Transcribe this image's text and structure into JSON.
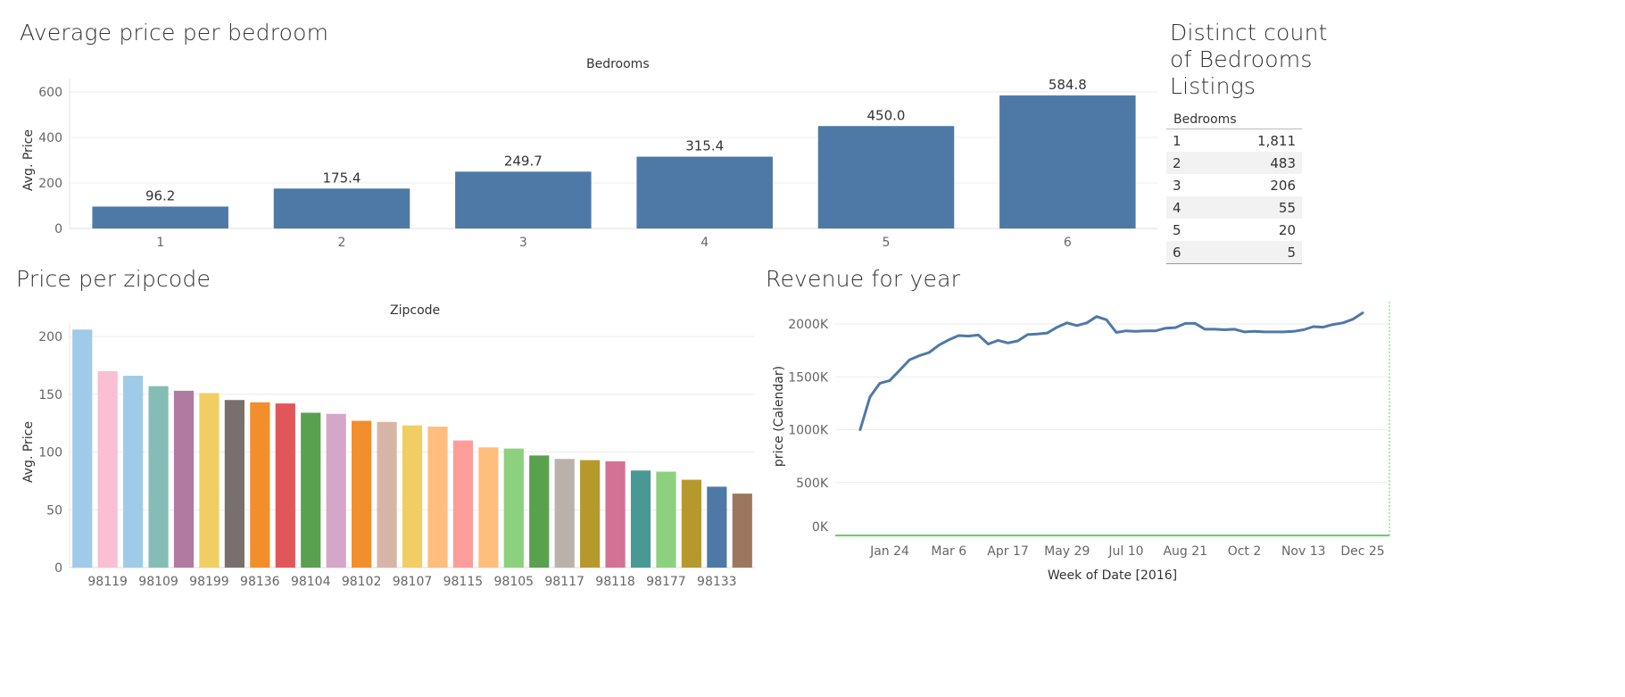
{
  "bedroom_panel": {
    "title": "Average price per bedroom"
  },
  "zip_panel": {
    "title": "Price per zipcode"
  },
  "revenue_panel": {
    "title": "Revenue for year"
  },
  "count_panel": {
    "title_lines": [
      "Distinct count",
      "of Bedrooms",
      "Listings"
    ],
    "column_header": "Bedrooms",
    "rows": [
      {
        "bedrooms": "1",
        "count": "1,811"
      },
      {
        "bedrooms": "2",
        "count": "483"
      },
      {
        "bedrooms": "3",
        "count": "206"
      },
      {
        "bedrooms": "4",
        "count": "55"
      },
      {
        "bedrooms": "5",
        "count": "20"
      },
      {
        "bedrooms": "6",
        "count": "5"
      }
    ]
  },
  "chart_data": [
    {
      "type": "bar",
      "title": "Average price per bedroom",
      "column_header": "Bedrooms",
      "ylabel": "Avg. Price",
      "ylim": [
        0,
        600
      ],
      "yticks": [
        0,
        200,
        400,
        600
      ],
      "categories": [
        "1",
        "2",
        "3",
        "4",
        "5",
        "6"
      ],
      "values": [
        96.2,
        175.4,
        249.7,
        315.4,
        450.0,
        584.8
      ],
      "value_labels": [
        "96.2",
        "175.4",
        "249.7",
        "315.4",
        "450.0",
        "584.8"
      ],
      "color": "#4e79a7",
      "grid": true
    },
    {
      "type": "bar",
      "title": "Price per zipcode",
      "column_header": "Zipcode",
      "ylabel": "Avg. Price",
      "ylim": [
        0,
        200
      ],
      "yticks": [
        0,
        50,
        100,
        150,
        200
      ],
      "categories": [
        "",
        "98119",
        "",
        "98109",
        "",
        "98199",
        "",
        "98136",
        "",
        "98104",
        "",
        "98102",
        "",
        "98107",
        "",
        "98115",
        "",
        "98105",
        "",
        "98117",
        "",
        "98118",
        "",
        "98177",
        "",
        "98133",
        ""
      ],
      "values": [
        206,
        170,
        166,
        157,
        153,
        151,
        145,
        143,
        142,
        134,
        133,
        127,
        126,
        123,
        122,
        110,
        104,
        103,
        97,
        94,
        93,
        92,
        84,
        83,
        76,
        70,
        64
      ],
      "colors": [
        "#a0cbe8",
        "#fabfd2",
        "#a0cbe8",
        "#86bcb6",
        "#b07aa1",
        "#f1ce63",
        "#79706e",
        "#f28e2b",
        "#e15759",
        "#59a14f",
        "#d4a6c8",
        "#f28e2b",
        "#d7b5a6",
        "#f1ce63",
        "#ffbe7d",
        "#ff9d9a",
        "#ffbe7d",
        "#8cd17d",
        "#59a14f",
        "#bab0ac",
        "#b6992d",
        "#d37295",
        "#499894",
        "#8cd17d",
        "#b6992d",
        "#4e79a7",
        "#9d7660"
      ],
      "grid": true
    },
    {
      "type": "line",
      "title": "Revenue for year",
      "xlabel": "Week of Date [2016]",
      "ylabel": "price (Calendar)",
      "ylim": [
        0,
        2000000
      ],
      "yticks": [
        0,
        500000,
        1000000,
        1500000,
        2000000
      ],
      "ytick_labels": [
        "0K",
        "500K",
        "1000K",
        "1500K",
        "2000K"
      ],
      "xtick_labels": [
        "Jan 24",
        "Mar 6",
        "Apr 17",
        "May 29",
        "Jul 10",
        "Aug 21",
        "Oct 2",
        "Nov 13",
        "Dec 25"
      ],
      "series": [
        {
          "color": "#4e79a7",
          "x": [
            "2016-01-03",
            "2016-01-10",
            "2016-01-17",
            "2016-01-24",
            "2016-01-31",
            "2016-02-07",
            "2016-02-14",
            "2016-02-21",
            "2016-02-28",
            "2016-03-06",
            "2016-03-13",
            "2016-03-20",
            "2016-03-27",
            "2016-04-03",
            "2016-04-10",
            "2016-04-17",
            "2016-04-24",
            "2016-05-01",
            "2016-05-08",
            "2016-05-15",
            "2016-05-22",
            "2016-05-29",
            "2016-06-05",
            "2016-06-12",
            "2016-06-19",
            "2016-06-26",
            "2016-07-03",
            "2016-07-10",
            "2016-07-17",
            "2016-07-24",
            "2016-07-31",
            "2016-08-07",
            "2016-08-14",
            "2016-08-21",
            "2016-08-28",
            "2016-09-04",
            "2016-09-11",
            "2016-09-18",
            "2016-09-25",
            "2016-10-02",
            "2016-10-09",
            "2016-10-16",
            "2016-10-23",
            "2016-10-30",
            "2016-11-06",
            "2016-11-13",
            "2016-11-20",
            "2016-11-27",
            "2016-12-04",
            "2016-12-11",
            "2016-12-18",
            "2016-12-25"
          ],
          "y": [
            1000000,
            1310000,
            1440000,
            1465000,
            1560000,
            1660000,
            1700000,
            1730000,
            1800000,
            1850000,
            1890000,
            1885000,
            1895000,
            1810000,
            1845000,
            1820000,
            1840000,
            1900000,
            1905000,
            1915000,
            1970000,
            2010000,
            1985000,
            2010000,
            2070000,
            2040000,
            1920000,
            1935000,
            1930000,
            1935000,
            1935000,
            1960000,
            1965000,
            2005000,
            2005000,
            1950000,
            1950000,
            1945000,
            1950000,
            1925000,
            1930000,
            1925000,
            1925000,
            1925000,
            1930000,
            1945000,
            1975000,
            1970000,
            1995000,
            2010000,
            2045000,
            2105000
          ]
        }
      ],
      "reference_line": {
        "y": 0,
        "color": "#5cd65c"
      },
      "grid": true
    }
  ]
}
